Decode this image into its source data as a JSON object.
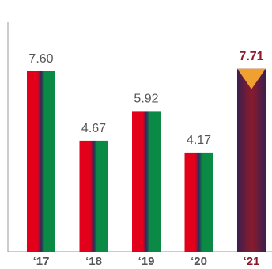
{
  "chart_data": {
    "type": "bar",
    "categories": [
      "‘17",
      "‘18",
      "‘19",
      "‘20",
      "‘21"
    ],
    "values": [
      7.6,
      4.67,
      5.92,
      4.17,
      7.71
    ],
    "value_labels": [
      "7.60",
      "4.67",
      "5.92",
      "4.17",
      "7.71"
    ],
    "color": "#e3001b",
    "color2": "#0b8a45",
    "highlight_index": 4,
    "highlight_color": "#8b1a2b"
  }
}
